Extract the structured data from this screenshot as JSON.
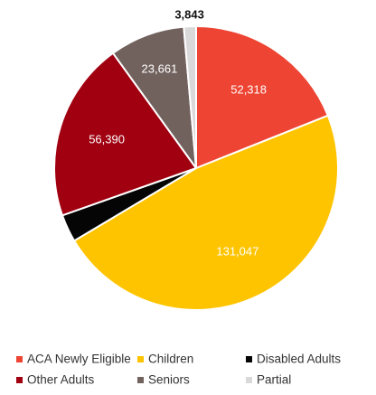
{
  "chart_data": {
    "type": "pie",
    "title": "",
    "legend_position": "bottom",
    "start_angle_deg": 0,
    "direction": "clockwise",
    "slices": [
      {
        "name": "ACA Newly Eligible",
        "value": 52318,
        "label": "52,318",
        "color": "#EE4433",
        "label_color": "#ffffff"
      },
      {
        "name": "Children",
        "value": 131047,
        "label": "131,047",
        "color": "#FFC400",
        "label_color": "#ffffff"
      },
      {
        "name": "Disabled Adults",
        "value": 8700,
        "label": "",
        "color": "#050505",
        "label_color": "#ffffff"
      },
      {
        "name": "Other Adults",
        "value": 56390,
        "label": "56,390",
        "color": "#A00010",
        "label_color": "#ffffff"
      },
      {
        "name": "Seniors",
        "value": 23661,
        "label": "23,661",
        "color": "#72625E",
        "label_color": "#ffffff"
      },
      {
        "name": "Partial",
        "value": 3843,
        "label": "3,843",
        "color": "#D9D9D9",
        "label_color": "#111111",
        "label_outside": true
      }
    ]
  }
}
